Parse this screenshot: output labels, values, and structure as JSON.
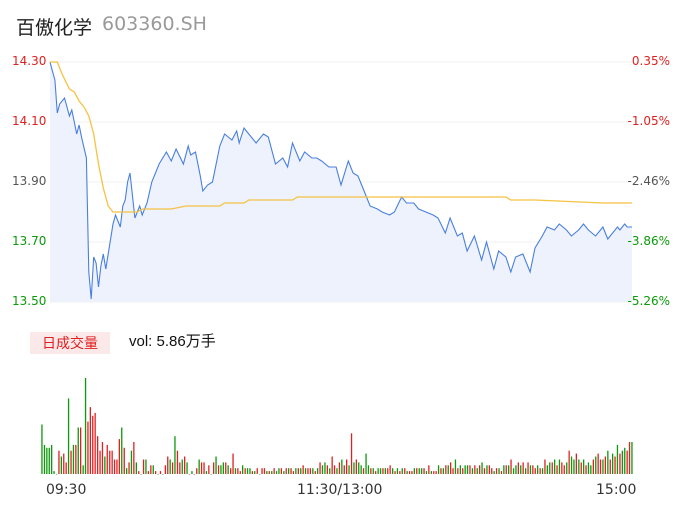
{
  "header": {
    "name": "百傲化学",
    "code": "603360.SH"
  },
  "volume_panel": {
    "tag": "日成交量",
    "label": "vol: 5.86万手"
  },
  "colors": {
    "price_line": "#4a7fe0",
    "avg_line": "#f5c242",
    "up": "#e02020",
    "down": "#0a9a0a",
    "fill": "#edf2fc"
  },
  "chart_data": [
    {
      "type": "line",
      "title": "",
      "y_tick_labels": [
        "14.30",
        "14.10",
        "13.90",
        "13.70",
        "13.50"
      ],
      "y2_tick_labels": [
        "0.35%",
        "-1.05%",
        "-2.46%",
        "-3.86%",
        "-5.26%"
      ],
      "x_tick_labels": [
        "09:30",
        "11:30/13:00",
        "15:00"
      ],
      "ylim": [
        13.5,
        14.3
      ],
      "series": [
        {
          "x": [
            0,
            1,
            2,
            3,
            4,
            6,
            7,
            8,
            9,
            10,
            11,
            12,
            13,
            15,
            16,
            17,
            18,
            19,
            20,
            21,
            22,
            23,
            25,
            26,
            27,
            28,
            29,
            30,
            31,
            32,
            33,
            35,
            37,
            38,
            40,
            42,
            45,
            48,
            50,
            52,
            55,
            57,
            58,
            60,
            62,
            63,
            65,
            67,
            70,
            72,
            75,
            77,
            78,
            80,
            82,
            85,
            88,
            90,
            93,
            96,
            98,
            100,
            103,
            105,
            108,
            110,
            112,
            115,
            118,
            120,
            123,
            125,
            127,
            130,
            132,
            135,
            137,
            140,
            142,
            145,
            147,
            150,
            152,
            155,
            158,
            160,
            163,
            165,
            168,
            170,
            172,
            175,
            178,
            180,
            183,
            185,
            188,
            190,
            192,
            195,
            198,
            200,
            203,
            205,
            208,
            210,
            213,
            215,
            218,
            220,
            222,
            225,
            228,
            230,
            232,
            234,
            235,
            237,
            238,
            240
          ],
          "values": [
            14.3,
            14.27,
            14.24,
            14.13,
            14.16,
            14.18,
            14.15,
            14.12,
            14.14,
            14.1,
            14.06,
            14.09,
            14.05,
            13.98,
            13.6,
            13.51,
            13.65,
            13.63,
            13.55,
            13.62,
            13.66,
            13.61,
            13.71,
            13.76,
            13.79,
            13.77,
            13.75,
            13.82,
            13.84,
            13.9,
            13.93,
            13.78,
            13.82,
            13.79,
            13.83,
            13.9,
            13.96,
            14.0,
            13.97,
            14.01,
            13.96,
            14.02,
            13.99,
            14.0,
            13.92,
            13.87,
            13.89,
            13.9,
            14.02,
            14.06,
            14.04,
            14.07,
            14.03,
            14.08,
            14.06,
            14.03,
            14.06,
            14.05,
            13.96,
            13.98,
            13.95,
            14.03,
            13.97,
            14.0,
            13.98,
            13.98,
            13.97,
            13.95,
            13.95,
            13.89,
            13.97,
            13.93,
            13.92,
            13.86,
            13.82,
            13.81,
            13.8,
            13.79,
            13.8,
            13.85,
            13.83,
            13.83,
            13.81,
            13.8,
            13.79,
            13.78,
            13.73,
            13.78,
            13.72,
            13.73,
            13.67,
            13.72,
            13.64,
            13.7,
            13.61,
            13.67,
            13.65,
            13.6,
            13.65,
            13.66,
            13.6,
            13.68,
            13.72,
            13.75,
            13.74,
            13.76,
            13.74,
            13.72,
            13.74,
            13.76,
            13.74,
            13.72,
            13.75,
            13.71,
            13.73,
            13.75,
            13.74,
            13.76,
            13.75,
            13.75
          ]
        },
        {
          "x": [
            0,
            3,
            5,
            8,
            10,
            12,
            14,
            16,
            18,
            20,
            22,
            24,
            26,
            28,
            30,
            32,
            34,
            36,
            38,
            42,
            50,
            56,
            58,
            70,
            72,
            80,
            82,
            100,
            102,
            140,
            170,
            188,
            190,
            200,
            228,
            240
          ],
          "values": [
            14.3,
            14.3,
            14.26,
            14.21,
            14.2,
            14.17,
            14.15,
            14.12,
            14.06,
            13.96,
            13.88,
            13.82,
            13.8,
            13.8,
            13.8,
            13.8,
            13.8,
            13.8,
            13.81,
            13.81,
            13.81,
            13.82,
            13.82,
            13.82,
            13.83,
            13.83,
            13.84,
            13.84,
            13.85,
            13.85,
            13.85,
            13.85,
            13.84,
            13.84,
            13.83,
            13.83
          ]
        }
      ]
    },
    {
      "type": "bar",
      "title": "",
      "values": [
        17,
        10,
        9,
        9,
        10,
        1,
        0,
        8,
        6,
        7,
        4,
        26,
        8,
        10,
        10,
        16,
        16,
        3,
        33,
        18,
        23,
        20,
        21,
        13,
        8,
        11,
        6,
        10,
        8,
        8,
        5,
        5,
        12,
        16,
        9,
        2,
        4,
        8,
        11,
        4,
        1,
        0,
        5,
        5,
        1,
        3,
        3,
        1,
        0,
        1,
        0,
        3,
        6,
        5,
        4,
        13,
        8,
        4,
        5,
        6,
        4,
        0,
        1,
        0,
        2,
        5,
        4,
        4,
        1,
        3,
        0,
        4,
        6,
        3,
        3,
        4,
        4,
        3,
        2,
        7,
        2,
        2,
        1,
        3,
        2,
        2,
        2,
        1,
        1,
        2,
        0,
        2,
        2,
        1,
        1,
        1,
        2,
        1,
        2,
        2,
        1,
        2,
        2,
        2,
        1,
        2,
        2,
        2,
        3,
        2,
        2,
        2,
        2,
        1,
        2,
        4,
        3,
        4,
        3,
        2,
        6,
        3,
        2,
        4,
        5,
        3,
        5,
        3,
        14,
        4,
        5,
        4,
        3,
        2,
        7,
        3,
        2,
        2,
        1,
        2,
        2,
        2,
        2,
        2,
        3,
        2,
        1,
        2,
        1,
        2,
        2,
        1,
        1,
        1,
        2,
        2,
        2,
        2,
        2,
        1,
        3,
        1,
        1,
        1,
        3,
        2,
        2,
        3,
        3,
        4,
        2,
        5,
        2,
        3,
        2,
        3,
        3,
        3,
        2,
        3,
        2,
        3,
        4,
        2,
        3,
        3,
        2,
        1,
        2,
        2,
        1,
        3,
        3,
        3,
        5,
        2,
        3,
        4,
        3,
        4,
        2,
        4,
        3,
        3,
        2,
        3,
        2,
        2,
        5,
        3,
        4,
        4,
        5,
        3,
        5,
        4,
        3,
        4,
        8,
        6,
        5,
        7,
        5,
        4,
        5,
        3,
        4,
        3,
        5,
        6,
        7,
        5,
        5,
        6,
        8,
        5,
        7,
        6,
        10,
        7,
        8,
        9,
        8,
        11,
        11
      ],
      "up": [
        0,
        0,
        0,
        0,
        0,
        0,
        0,
        1,
        0,
        1,
        1,
        0,
        1,
        0,
        1,
        0,
        1,
        0,
        0,
        1,
        1,
        1,
        1,
        1,
        1,
        1,
        0,
        1,
        1,
        1,
        1,
        1,
        1,
        0,
        1,
        0,
        1,
        0,
        1,
        0,
        1,
        0,
        1,
        0,
        1,
        1,
        0,
        1,
        0,
        1,
        0,
        1,
        1,
        0,
        1,
        0,
        1,
        1,
        0,
        1,
        0,
        1,
        0,
        1,
        1,
        0,
        1,
        1,
        0,
        1,
        0,
        1,
        0,
        1,
        0,
        0,
        1,
        0,
        1,
        1,
        0,
        1,
        1,
        0,
        1,
        0,
        0,
        1,
        0,
        1,
        0,
        1,
        1,
        0,
        1,
        0,
        1,
        0,
        0,
        1,
        0,
        1,
        0,
        1,
        1,
        0,
        1,
        0,
        1,
        0,
        1,
        1,
        0,
        1,
        0,
        1,
        0,
        0,
        1,
        0,
        1,
        1,
        0,
        1,
        0,
        1,
        1,
        0,
        1,
        0,
        1,
        0,
        0,
        1,
        0,
        0,
        1,
        0,
        1,
        0,
        0,
        1,
        0,
        1,
        1,
        0,
        1,
        0,
        1,
        0,
        1,
        0,
        1,
        1,
        0,
        1,
        0,
        0,
        1,
        0,
        1,
        0,
        1,
        1,
        0,
        1,
        0,
        1,
        0,
        1,
        1,
        0,
        1,
        0,
        1,
        0,
        0,
        1,
        0,
        1,
        0,
        1,
        0,
        1,
        0,
        1,
        1,
        0,
        1,
        0,
        1,
        0,
        1,
        0,
        1,
        0,
        0,
        1,
        0,
        1,
        0,
        1,
        0,
        1,
        1,
        0,
        1,
        0,
        1,
        0,
        0,
        1,
        0,
        1,
        0,
        1,
        1,
        0,
        1,
        0,
        0,
        1,
        0,
        1,
        0,
        1,
        0,
        0,
        1,
        0,
        1,
        1,
        0,
        1,
        0,
        1,
        0,
        1,
        0,
        1,
        0,
        0,
        1,
        1,
        0,
        1
      ]
    }
  ]
}
